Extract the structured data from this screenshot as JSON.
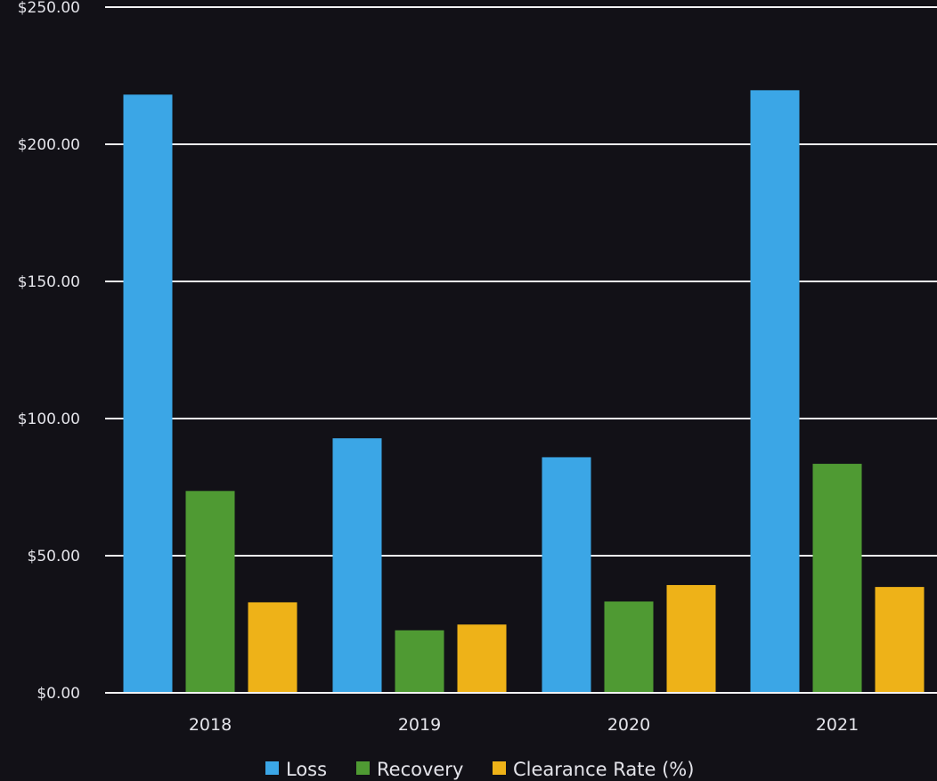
{
  "chart_data": {
    "type": "bar",
    "title": "",
    "xlabel": "",
    "ylabel": "",
    "categories": [
      "2018",
      "2019",
      "2020",
      "2021"
    ],
    "series": [
      {
        "name": "Loss",
        "values": [
          218.1,
          92.8,
          85.9,
          219.7
        ],
        "color": "#3ba6e6"
      },
      {
        "name": "Recovery",
        "values": [
          73.6,
          22.8,
          33.3,
          83.5
        ],
        "color": "#4f9a33"
      },
      {
        "name": "Clearance Rate (%)",
        "values": [
          33.0,
          24.9,
          39.3,
          38.6
        ],
        "color": "#eeb218"
      }
    ],
    "ylim": [
      0,
      250
    ],
    "yticks": [
      0,
      50,
      100,
      150,
      200,
      250
    ],
    "ytick_labels": [
      "$0.00",
      "$50.00",
      "$100.00",
      "$150.00",
      "$200.00",
      "$250.00"
    ],
    "grid": true,
    "legend_position": "bottom",
    "background_color": "#121117"
  }
}
